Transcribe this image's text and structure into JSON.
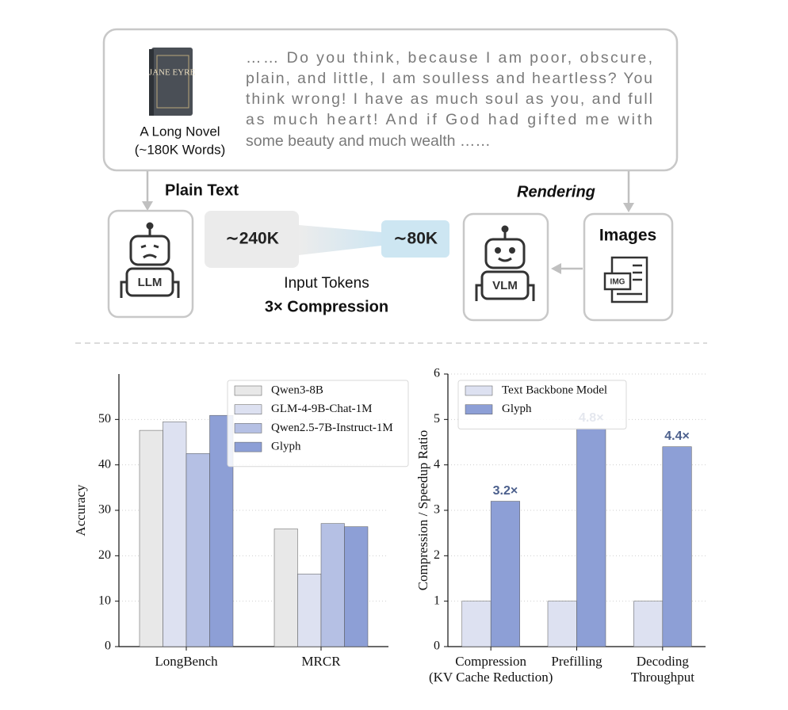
{
  "diagram": {
    "book_title": "JANE EYRE",
    "book_caption": [
      "A Long Novel",
      "(~180K Words)"
    ],
    "quote": [
      "…… Do you think, because I am poor, obscure,",
      "plain, and little, I am soulless and heartless? You",
      "think wrong! I have as much soul as you, and full",
      "as much heart! And if God had gifted me with",
      "some beauty and much wealth ……"
    ],
    "plain_text_label": "Plain Text",
    "rendering_label": "Rendering",
    "llm_label": "LLM",
    "vlm_label": "VLM",
    "images_label": "Images",
    "img_icon": "IMG",
    "tokens_plain": "∼240K",
    "tokens_image": "∼80K",
    "tokens_caption": "Input Tokens",
    "compression_label": "3× Compression"
  },
  "chart_data": [
    {
      "type": "bar",
      "ylabel": "Accuracy",
      "categories": [
        "LongBench",
        "MRCR"
      ],
      "series": [
        {
          "name": "Qwen3-8B",
          "color": "#e8e8e8",
          "values": [
            47.6,
            25.9
          ]
        },
        {
          "name": "GLM-4-9B-Chat-1M",
          "color": "#dde1f1",
          "values": [
            49.5,
            16.0
          ]
        },
        {
          "name": "Qwen2.5-7B-Instruct-1M",
          "color": "#b5c0e4",
          "values": [
            42.5,
            27.1
          ]
        },
        {
          "name": "Glyph",
          "color": "#8d9fd6",
          "values": [
            50.9,
            26.4
          ]
        }
      ],
      "ylim": [
        0,
        60
      ],
      "yticks": [
        0,
        10,
        20,
        30,
        40,
        50
      ],
      "grid": true,
      "legend": "upper right"
    },
    {
      "type": "bar",
      "ylabel": "Compression / Speedup Ratio",
      "categories": [
        [
          "Compression",
          "(KV Cache Reduction)"
        ],
        [
          "Prefilling"
        ],
        [
          "Decoding",
          "Throughput"
        ]
      ],
      "series": [
        {
          "name": "Text Backbone Model",
          "color": "#dde1f1",
          "values": [
            1,
            1,
            1
          ]
        },
        {
          "name": "Glyph",
          "color": "#8d9fd6",
          "values": [
            3.2,
            4.8,
            4.4
          ],
          "value_labels": [
            "3.2×",
            "4.8×",
            "4.4×"
          ]
        }
      ],
      "ylim": [
        0,
        6
      ],
      "yticks": [
        0,
        1,
        2,
        3,
        4,
        5,
        6
      ],
      "grid": true,
      "legend": "upper left"
    }
  ]
}
